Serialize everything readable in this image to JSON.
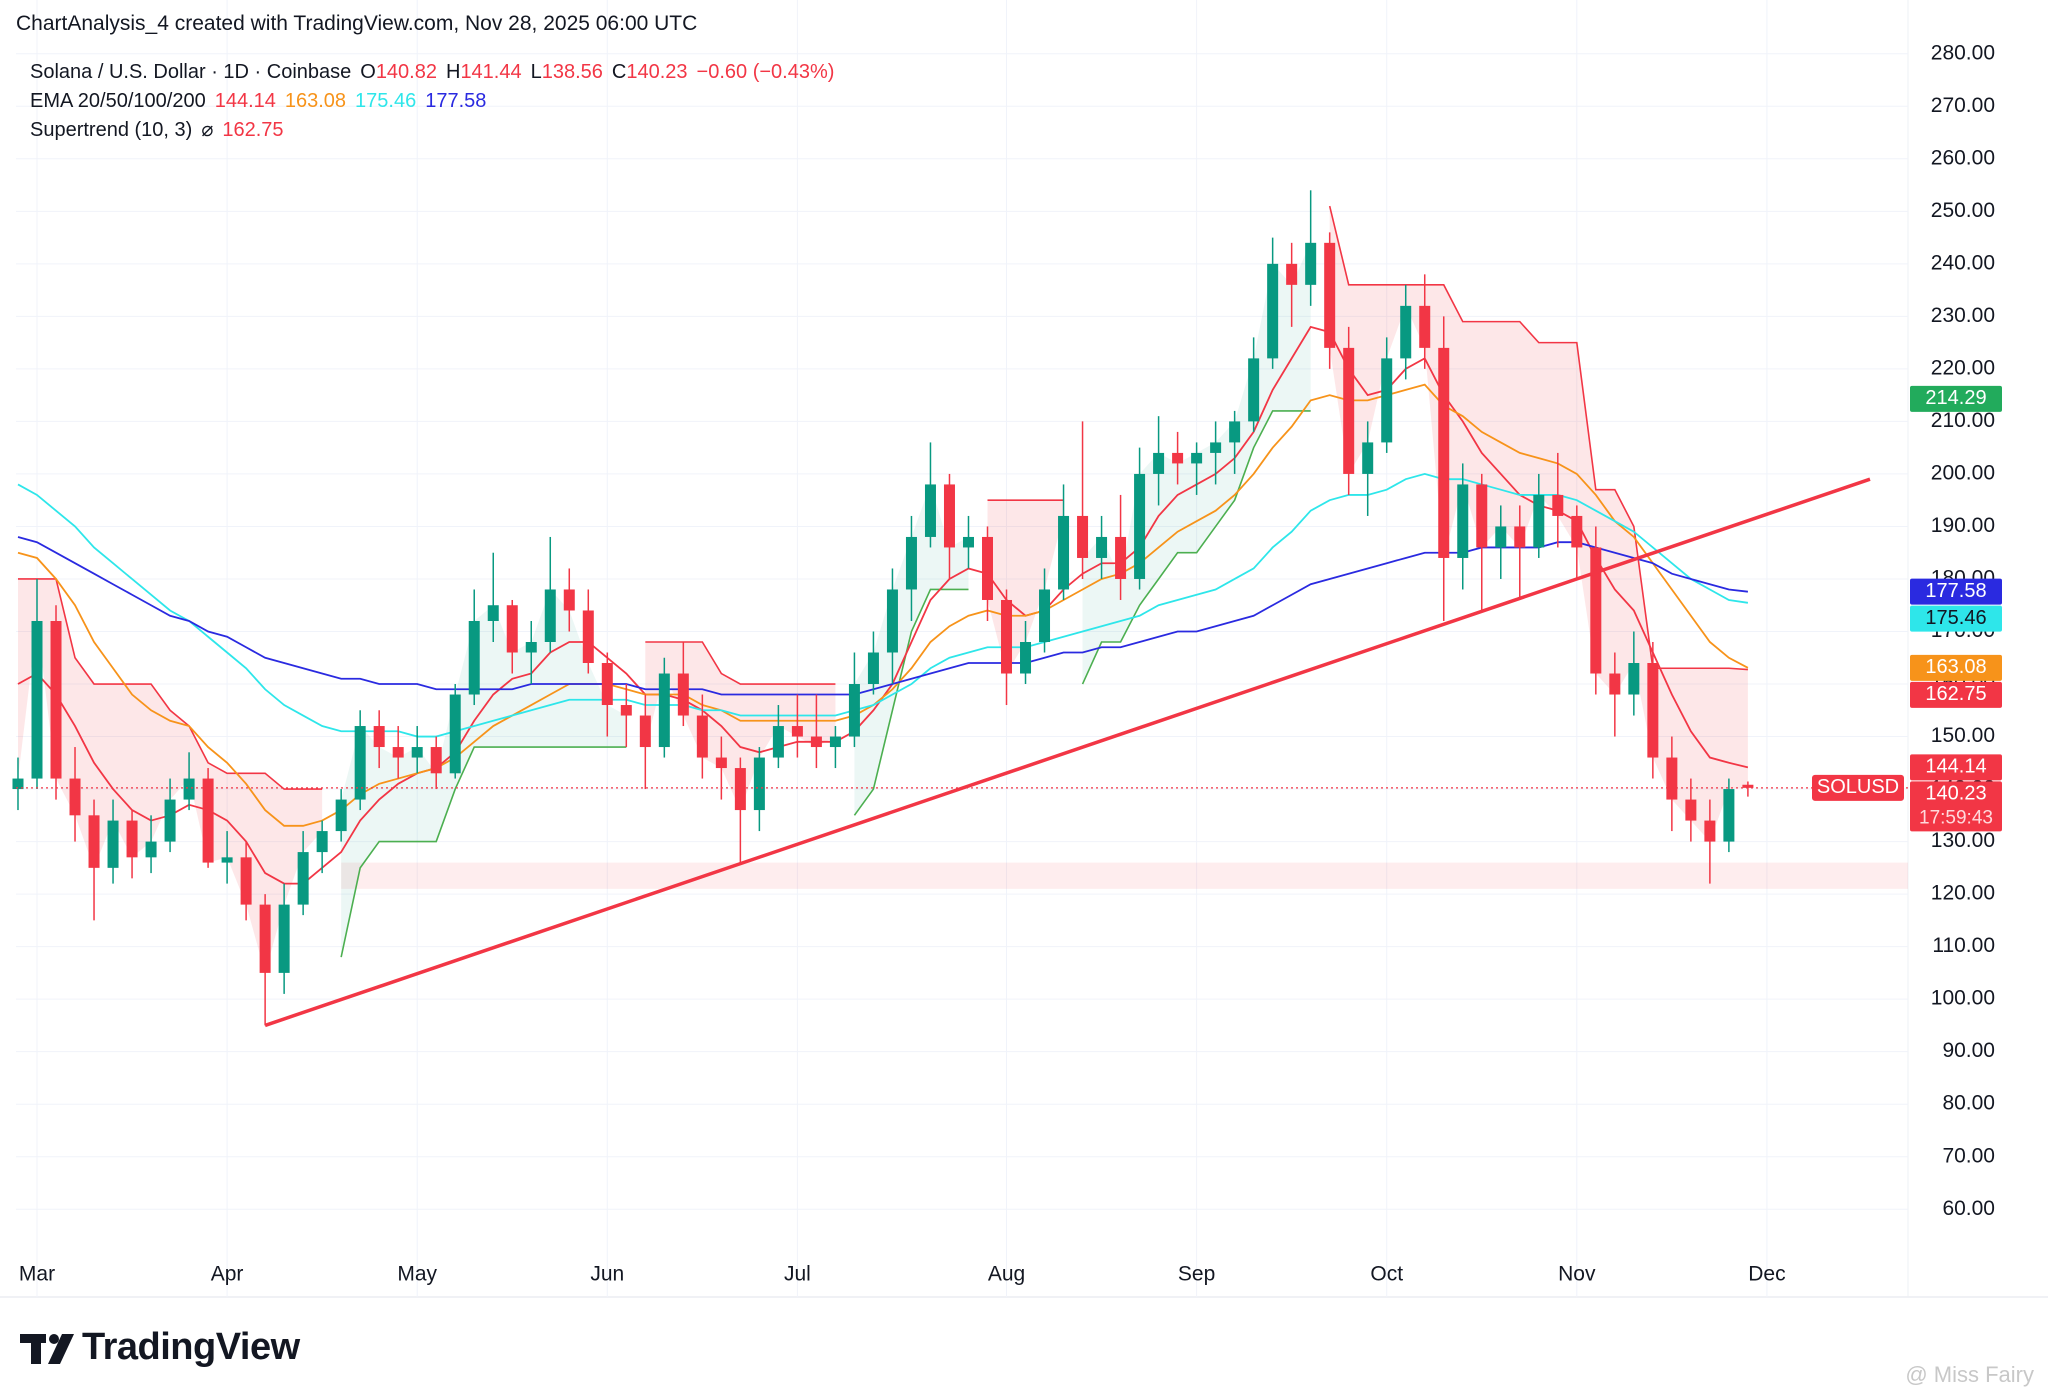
{
  "header": "ChartAnalysis_4 created with TradingView.com, Nov 28, 2025 06:00 UTC",
  "footer": {
    "brand": "TradingView",
    "watermark": "@ Miss Fairy"
  },
  "chart_data": {
    "type": "candlestick",
    "symbol": "Solana / U.S. Dollar · 1D · Coinbase",
    "ohlc_keys": [
      "O",
      "H",
      "L",
      "C"
    ],
    "change": "−0.60 (−0.43%)",
    "ticker": "SOLUSD",
    "countdown": "17:59:43",
    "up_color": "#089981",
    "down_color": "#f23645",
    "categories": [
      null,
      "Mar",
      null,
      null,
      null,
      null,
      null,
      null,
      null,
      null,
      null,
      "Apr",
      null,
      null,
      null,
      null,
      null,
      null,
      null,
      null,
      null,
      "May",
      null,
      null,
      null,
      null,
      null,
      null,
      null,
      null,
      null,
      "Jun",
      null,
      null,
      null,
      null,
      null,
      null,
      null,
      null,
      null,
      "Jul",
      null,
      null,
      null,
      null,
      null,
      null,
      null,
      null,
      null,
      null,
      "Aug",
      null,
      null,
      null,
      null,
      null,
      null,
      null,
      null,
      null,
      "Sep",
      null,
      null,
      null,
      null,
      null,
      null,
      null,
      null,
      null,
      "Oct",
      null,
      null,
      null,
      null,
      null,
      null,
      null,
      null,
      null,
      "Nov",
      null,
      null,
      null,
      null,
      null,
      null,
      null,
      null,
      null,
      "Dec"
    ],
    "open": [
      140,
      142,
      172,
      142,
      135,
      125,
      134,
      127,
      130,
      138,
      142,
      126,
      127,
      118,
      105,
      118,
      128,
      132,
      138,
      152,
      148,
      146,
      148,
      143,
      158,
      172,
      175,
      166,
      168,
      178,
      174,
      164,
      156,
      154,
      148,
      162,
      154,
      146,
      144,
      136,
      146,
      152,
      150,
      148,
      150,
      160,
      166,
      178,
      188,
      198,
      186,
      188,
      176,
      162,
      168,
      178,
      192,
      184,
      188,
      180,
      200,
      204,
      202,
      204,
      206,
      210,
      222,
      240,
      236,
      244,
      224,
      200,
      206,
      222,
      232,
      224,
      184,
      198,
      186,
      190,
      186,
      196,
      192,
      186,
      162,
      158,
      164,
      146,
      138,
      134,
      130,
      140.82,
      null
    ],
    "high": [
      146,
      180,
      175,
      148,
      138,
      138,
      136,
      135,
      142,
      147,
      144,
      132,
      130,
      120,
      122,
      132,
      134,
      140,
      155,
      155,
      152,
      152,
      150,
      160,
      178,
      185,
      176,
      172,
      188,
      182,
      178,
      166,
      160,
      158,
      165,
      168,
      158,
      150,
      146,
      148,
      156,
      158,
      158,
      152,
      166,
      170,
      182,
      192,
      206,
      200,
      192,
      190,
      178,
      172,
      182,
      198,
      210,
      192,
      196,
      205,
      211,
      208,
      206,
      210,
      212,
      226,
      245,
      244,
      254,
      246,
      228,
      210,
      226,
      236,
      238,
      230,
      202,
      200,
      194,
      194,
      200,
      204,
      194,
      190,
      166,
      170,
      168,
      150,
      142,
      138,
      142,
      141.44,
      null
    ],
    "low": [
      136,
      140,
      138,
      130,
      115,
      122,
      123,
      124,
      128,
      136,
      125,
      122,
      115,
      95,
      101,
      116,
      124,
      130,
      136,
      144,
      142,
      143,
      140,
      142,
      156,
      168,
      162,
      160,
      166,
      170,
      162,
      150,
      148,
      140,
      146,
      152,
      142,
      138,
      126,
      132,
      144,
      146,
      144,
      144,
      148,
      158,
      160,
      172,
      186,
      180,
      182,
      172,
      156,
      160,
      166,
      176,
      180,
      180,
      176,
      178,
      194,
      198,
      196,
      198,
      200,
      208,
      220,
      228,
      232,
      220,
      196,
      192,
      204,
      218,
      220,
      172,
      178,
      174,
      180,
      176,
      184,
      186,
      180,
      158,
      150,
      154,
      142,
      132,
      130,
      122,
      128,
      138.56,
      null
    ],
    "close": [
      142,
      172,
      142,
      135,
      125,
      134,
      127,
      130,
      138,
      142,
      126,
      127,
      118,
      105,
      118,
      128,
      132,
      138,
      152,
      148,
      146,
      148,
      143,
      158,
      172,
      175,
      166,
      168,
      178,
      174,
      164,
      156,
      154,
      148,
      162,
      154,
      146,
      144,
      136,
      146,
      152,
      150,
      148,
      150,
      160,
      166,
      178,
      188,
      198,
      186,
      188,
      176,
      162,
      168,
      178,
      192,
      184,
      188,
      180,
      200,
      204,
      202,
      204,
      206,
      210,
      222,
      240,
      236,
      244,
      224,
      200,
      206,
      222,
      232,
      224,
      184,
      198,
      186,
      190,
      186,
      196,
      192,
      186,
      162,
      158,
      164,
      146,
      138,
      134,
      130,
      140,
      140.23,
      null
    ],
    "ema_label": "EMA 20/50/100/200",
    "series": [
      {
        "color": "#f23645",
        "values": [
          160,
          162,
          158,
          152,
          145,
          140,
          136,
          134,
          135,
          137,
          136,
          134,
          130,
          124,
          122,
          122,
          125,
          128,
          134,
          138,
          141,
          143,
          144,
          147,
          153,
          158,
          161,
          162,
          166,
          168,
          168,
          165,
          162,
          158,
          158,
          157,
          155,
          152,
          148,
          147,
          148,
          149,
          149,
          149,
          151,
          155,
          160,
          168,
          176,
          180,
          182,
          181,
          176,
          173,
          174,
          178,
          181,
          183,
          183,
          186,
          192,
          196,
          198,
          200,
          203,
          208,
          216,
          222,
          228,
          227,
          220,
          215,
          216,
          220,
          222,
          215,
          210,
          204,
          200,
          196,
          194,
          193,
          191,
          184,
          178,
          174,
          166,
          158,
          151,
          146,
          145,
          144.14,
          null
        ]
      },
      {
        "color": "#f7931a",
        "values": [
          185,
          184,
          180,
          175,
          168,
          163,
          158,
          155,
          153,
          152,
          148,
          145,
          141,
          136,
          133,
          133,
          134,
          136,
          139,
          141,
          142,
          143,
          144,
          146,
          149,
          152,
          154,
          156,
          158,
          160,
          160,
          160,
          159,
          158,
          158,
          158,
          156,
          155,
          153,
          153,
          153,
          153,
          153,
          153,
          154,
          156,
          159,
          163,
          168,
          171,
          173,
          174,
          173,
          173,
          174,
          176,
          178,
          180,
          181,
          183,
          186,
          189,
          191,
          193,
          196,
          200,
          205,
          209,
          214,
          215,
          214,
          214,
          215,
          216,
          217,
          213,
          211,
          208,
          206,
          204,
          203,
          202,
          200,
          196,
          191,
          188,
          183,
          178,
          173,
          168,
          165,
          163.08,
          null
        ]
      },
      {
        "color": "#2ee6ea",
        "values": [
          198,
          196,
          193,
          190,
          186,
          183,
          180,
          177,
          174,
          172,
          169,
          166,
          163,
          159,
          156,
          154,
          152,
          151,
          151,
          151,
          151,
          150,
          150,
          151,
          152,
          153,
          154,
          155,
          156,
          157,
          157,
          157,
          157,
          156,
          156,
          156,
          155,
          155,
          154,
          154,
          154,
          154,
          154,
          154,
          155,
          156,
          158,
          160,
          163,
          165,
          166,
          167,
          167,
          167,
          168,
          169,
          170,
          171,
          172,
          173,
          175,
          176,
          177,
          178,
          180,
          182,
          186,
          189,
          193,
          195,
          196,
          196,
          197,
          199,
          200,
          199,
          199,
          198,
          197,
          196,
          196,
          196,
          195,
          193,
          191,
          189,
          186,
          183,
          180,
          178,
          176,
          175.46,
          null
        ]
      },
      {
        "color": "#2a2ae0",
        "values": [
          188,
          187,
          185,
          183,
          181,
          179,
          177,
          175,
          173,
          172,
          170,
          169,
          167,
          165,
          164,
          163,
          162,
          161,
          161,
          160,
          160,
          160,
          159,
          159,
          159,
          159,
          159,
          160,
          160,
          160,
          160,
          160,
          160,
          159,
          159,
          159,
          159,
          158,
          158,
          158,
          158,
          158,
          158,
          158,
          158,
          159,
          160,
          161,
          162,
          163,
          164,
          164,
          164,
          164,
          165,
          166,
          166,
          167,
          167,
          168,
          169,
          170,
          170,
          171,
          172,
          173,
          175,
          177,
          179,
          180,
          181,
          182,
          183,
          184,
          185,
          185,
          185,
          186,
          186,
          186,
          186,
          187,
          187,
          186,
          185,
          184,
          183,
          181,
          180,
          179,
          178,
          177.58,
          null
        ]
      }
    ],
    "supertrend": {
      "label": "Supertrend (10, 3)",
      "symbol": "⌀",
      "up": {
        "color": "#4caf50",
        "values": [
          null,
          null,
          null,
          null,
          null,
          null,
          null,
          null,
          null,
          null,
          null,
          null,
          null,
          null,
          null,
          null,
          null,
          108,
          125,
          130,
          130,
          130,
          130,
          140,
          148,
          148,
          148,
          148,
          148,
          148,
          148,
          148,
          148,
          null,
          null,
          null,
          null,
          null,
          null,
          null,
          null,
          null,
          null,
          null,
          135,
          140,
          155,
          170,
          178,
          178,
          178,
          null,
          null,
          null,
          null,
          null,
          160,
          168,
          168,
          175,
          180,
          185,
          185,
          190,
          195,
          205,
          212,
          212,
          212,
          null,
          null,
          null,
          null,
          null,
          null,
          null,
          null,
          null,
          null,
          null,
          null,
          null,
          null,
          null,
          null,
          null,
          null,
          null,
          null,
          null,
          null,
          null,
          null
        ]
      },
      "down": {
        "color": "#f23645",
        "values": [
          180,
          180,
          180,
          165,
          160,
          160,
          160,
          160,
          155,
          152,
          145,
          143,
          143,
          143,
          140,
          140,
          140,
          null,
          null,
          null,
          null,
          null,
          null,
          null,
          null,
          null,
          null,
          null,
          null,
          null,
          null,
          null,
          null,
          168,
          168,
          168,
          168,
          162,
          160,
          160,
          160,
          160,
          160,
          160,
          null,
          null,
          null,
          null,
          null,
          null,
          null,
          195,
          195,
          195,
          195,
          195,
          null,
          null,
          null,
          null,
          null,
          null,
          null,
          null,
          null,
          null,
          null,
          null,
          null,
          251,
          236,
          236,
          236,
          236,
          236,
          236,
          229,
          229,
          229,
          229,
          225,
          225,
          225,
          197,
          197,
          190,
          163,
          163,
          163,
          163,
          163,
          162.75,
          null
        ]
      }
    },
    "trendline": [
      95,
      199
    ],
    "trendline_color": "#f23645",
    "support_zone": [
      121,
      126
    ],
    "marker_badge": {
      "value": 214.29,
      "color": "#22ab5c"
    },
    "ylim": [
      53,
      283
    ],
    "yticks": [
      {
        "value": 60,
        "label": "60.00"
      },
      {
        "value": 70,
        "label": "70.00"
      },
      {
        "value": 80,
        "label": "80.00"
      },
      {
        "value": 90,
        "label": "90.00"
      },
      {
        "value": 100,
        "label": "100.00"
      },
      {
        "value": 110,
        "label": "110.00"
      },
      {
        "value": 120,
        "label": "120.00"
      },
      {
        "value": 130,
        "label": "130.00"
      },
      {
        "value": 140,
        "label": "140.00"
      },
      {
        "value": 150,
        "label": "150.00"
      },
      {
        "value": 160,
        "label": "160.00"
      },
      {
        "value": 170,
        "label": "170.00"
      },
      {
        "value": 180,
        "label": "180.00"
      },
      {
        "value": 190,
        "label": "190.00"
      },
      {
        "value": 200,
        "label": "200.00"
      },
      {
        "value": 210,
        "label": "210.00"
      },
      {
        "value": 220,
        "label": "220.00"
      },
      {
        "value": 230,
        "label": "230.00"
      },
      {
        "value": 240,
        "label": "240.00"
      },
      {
        "value": 250,
        "label": "250.00"
      },
      {
        "value": 260,
        "label": "260.00"
      },
      {
        "value": 270,
        "label": "270.00"
      },
      {
        "value": 280,
        "label": "280.00"
      }
    ],
    "grid": true
  }
}
